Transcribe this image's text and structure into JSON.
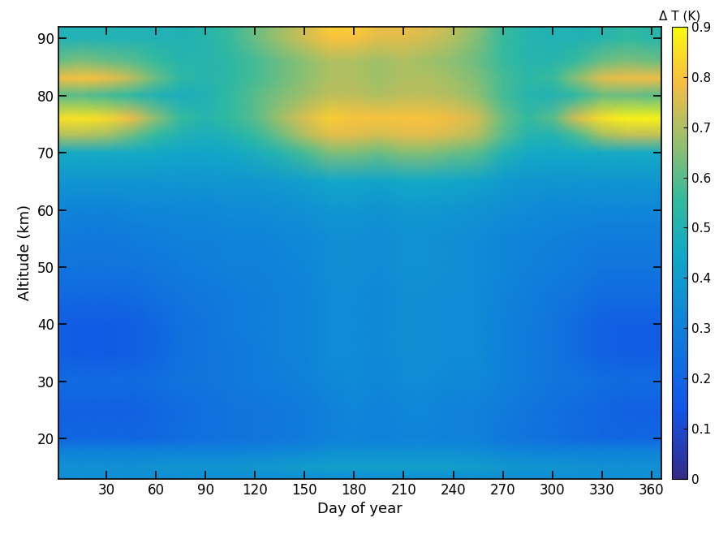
{
  "chart_data": {
    "type": "heatmap",
    "xlabel": "Day of year",
    "ylabel": "Altitude (km)",
    "colorbar_label": "Δ T (K)",
    "x": [
      1,
      15,
      30,
      45,
      60,
      75,
      90,
      105,
      120,
      135,
      150,
      165,
      180,
      195,
      210,
      225,
      240,
      255,
      270,
      285,
      300,
      315,
      330,
      345,
      366
    ],
    "y": [
      13,
      15,
      18,
      20,
      25,
      30,
      35,
      40,
      45,
      50,
      55,
      60,
      65,
      70,
      73,
      76,
      80,
      83,
      86,
      90,
      92
    ],
    "cells": [
      [
        0.35,
        0.35,
        0.35,
        0.35,
        0.35,
        0.35,
        0.35,
        0.35,
        0.35,
        0.35,
        0.35,
        0.35,
        0.35,
        0.35,
        0.35,
        0.35,
        0.35,
        0.35,
        0.35,
        0.35,
        0.35,
        0.35,
        0.35,
        0.35,
        0.35
      ],
      [
        0.36,
        0.36,
        0.36,
        0.36,
        0.37,
        0.38,
        0.38,
        0.38,
        0.39,
        0.4,
        0.41,
        0.42,
        0.42,
        0.42,
        0.42,
        0.42,
        0.42,
        0.41,
        0.39,
        0.38,
        0.38,
        0.37,
        0.36,
        0.36,
        0.36
      ],
      [
        0.3,
        0.3,
        0.3,
        0.3,
        0.3,
        0.3,
        0.3,
        0.3,
        0.31,
        0.32,
        0.33,
        0.35,
        0.35,
        0.35,
        0.35,
        0.35,
        0.35,
        0.34,
        0.32,
        0.31,
        0.3,
        0.3,
        0.3,
        0.3,
        0.3
      ],
      [
        0.2,
        0.2,
        0.2,
        0.2,
        0.21,
        0.23,
        0.24,
        0.25,
        0.26,
        0.27,
        0.28,
        0.3,
        0.31,
        0.3,
        0.31,
        0.31,
        0.3,
        0.3,
        0.27,
        0.25,
        0.24,
        0.22,
        0.21,
        0.2,
        0.2
      ],
      [
        0.18,
        0.18,
        0.18,
        0.18,
        0.2,
        0.22,
        0.24,
        0.25,
        0.26,
        0.27,
        0.28,
        0.3,
        0.32,
        0.3,
        0.32,
        0.32,
        0.3,
        0.3,
        0.28,
        0.26,
        0.24,
        0.22,
        0.2,
        0.18,
        0.18
      ],
      [
        0.22,
        0.22,
        0.22,
        0.22,
        0.23,
        0.25,
        0.26,
        0.27,
        0.28,
        0.29,
        0.3,
        0.33,
        0.34,
        0.32,
        0.34,
        0.34,
        0.33,
        0.33,
        0.3,
        0.28,
        0.26,
        0.25,
        0.23,
        0.22,
        0.22
      ],
      [
        0.17,
        0.16,
        0.16,
        0.17,
        0.2,
        0.24,
        0.26,
        0.27,
        0.28,
        0.3,
        0.31,
        0.34,
        0.34,
        0.33,
        0.35,
        0.35,
        0.34,
        0.34,
        0.3,
        0.28,
        0.26,
        0.22,
        0.18,
        0.17,
        0.17
      ],
      [
        0.17,
        0.16,
        0.16,
        0.17,
        0.2,
        0.24,
        0.26,
        0.28,
        0.29,
        0.3,
        0.31,
        0.34,
        0.34,
        0.33,
        0.35,
        0.35,
        0.34,
        0.34,
        0.3,
        0.28,
        0.26,
        0.22,
        0.18,
        0.17,
        0.17
      ],
      [
        0.22,
        0.21,
        0.21,
        0.22,
        0.24,
        0.26,
        0.27,
        0.28,
        0.29,
        0.3,
        0.31,
        0.34,
        0.34,
        0.33,
        0.35,
        0.35,
        0.34,
        0.34,
        0.31,
        0.29,
        0.27,
        0.25,
        0.22,
        0.22,
        0.22
      ],
      [
        0.26,
        0.25,
        0.25,
        0.26,
        0.27,
        0.28,
        0.29,
        0.3,
        0.3,
        0.31,
        0.32,
        0.35,
        0.35,
        0.34,
        0.36,
        0.36,
        0.35,
        0.34,
        0.32,
        0.3,
        0.29,
        0.28,
        0.26,
        0.26,
        0.26
      ],
      [
        0.28,
        0.27,
        0.27,
        0.28,
        0.29,
        0.3,
        0.3,
        0.31,
        0.31,
        0.32,
        0.33,
        0.35,
        0.35,
        0.34,
        0.36,
        0.36,
        0.35,
        0.34,
        0.32,
        0.31,
        0.3,
        0.29,
        0.28,
        0.28,
        0.28
      ],
      [
        0.32,
        0.31,
        0.31,
        0.32,
        0.32,
        0.33,
        0.33,
        0.34,
        0.34,
        0.35,
        0.36,
        0.38,
        0.38,
        0.37,
        0.39,
        0.39,
        0.38,
        0.37,
        0.35,
        0.34,
        0.33,
        0.33,
        0.32,
        0.32,
        0.32
      ],
      [
        0.38,
        0.38,
        0.38,
        0.38,
        0.38,
        0.38,
        0.38,
        0.38,
        0.39,
        0.4,
        0.42,
        0.44,
        0.44,
        0.43,
        0.45,
        0.45,
        0.44,
        0.43,
        0.4,
        0.38,
        0.38,
        0.38,
        0.38,
        0.38,
        0.38
      ],
      [
        0.46,
        0.46,
        0.46,
        0.46,
        0.45,
        0.44,
        0.44,
        0.45,
        0.48,
        0.52,
        0.58,
        0.64,
        0.64,
        0.62,
        0.65,
        0.65,
        0.62,
        0.6,
        0.5,
        0.46,
        0.45,
        0.45,
        0.46,
        0.46,
        0.46
      ],
      [
        0.7,
        0.7,
        0.68,
        0.62,
        0.55,
        0.5,
        0.48,
        0.5,
        0.55,
        0.62,
        0.7,
        0.76,
        0.76,
        0.74,
        0.76,
        0.76,
        0.74,
        0.7,
        0.6,
        0.52,
        0.5,
        0.58,
        0.68,
        0.72,
        0.72
      ],
      [
        0.85,
        0.86,
        0.84,
        0.78,
        0.66,
        0.56,
        0.52,
        0.55,
        0.6,
        0.68,
        0.75,
        0.82,
        0.8,
        0.8,
        0.8,
        0.8,
        0.78,
        0.74,
        0.62,
        0.55,
        0.6,
        0.75,
        0.85,
        0.88,
        0.88
      ],
      [
        0.6,
        0.6,
        0.58,
        0.55,
        0.5,
        0.48,
        0.5,
        0.55,
        0.6,
        0.64,
        0.68,
        0.72,
        0.72,
        0.7,
        0.72,
        0.72,
        0.7,
        0.66,
        0.58,
        0.52,
        0.5,
        0.55,
        0.62,
        0.62,
        0.6
      ],
      [
        0.78,
        0.8,
        0.78,
        0.72,
        0.62,
        0.54,
        0.52,
        0.54,
        0.58,
        0.62,
        0.66,
        0.7,
        0.7,
        0.68,
        0.7,
        0.7,
        0.68,
        0.64,
        0.58,
        0.54,
        0.56,
        0.66,
        0.76,
        0.78,
        0.78
      ],
      [
        0.62,
        0.64,
        0.62,
        0.6,
        0.56,
        0.52,
        0.52,
        0.54,
        0.58,
        0.62,
        0.66,
        0.7,
        0.7,
        0.68,
        0.7,
        0.68,
        0.66,
        0.62,
        0.56,
        0.52,
        0.52,
        0.56,
        0.62,
        0.64,
        0.62
      ],
      [
        0.5,
        0.5,
        0.5,
        0.5,
        0.5,
        0.5,
        0.52,
        0.56,
        0.62,
        0.68,
        0.74,
        0.8,
        0.8,
        0.76,
        0.76,
        0.74,
        0.7,
        0.64,
        0.56,
        0.52,
        0.5,
        0.5,
        0.52,
        0.55,
        0.52
      ],
      [
        0.5,
        0.5,
        0.5,
        0.5,
        0.5,
        0.5,
        0.52,
        0.56,
        0.62,
        0.68,
        0.74,
        0.82,
        0.82,
        0.78,
        0.78,
        0.76,
        0.72,
        0.66,
        0.56,
        0.52,
        0.5,
        0.5,
        0.52,
        0.55,
        0.52
      ]
    ],
    "xlim": [
      1,
      366
    ],
    "ylim": [
      13,
      92
    ],
    "xticks": [
      30,
      60,
      90,
      120,
      150,
      180,
      210,
      240,
      270,
      300,
      330,
      360
    ],
    "yticks": [
      20,
      30,
      40,
      50,
      60,
      70,
      80,
      90
    ],
    "color_range": [
      0,
      0.9
    ],
    "color_ticks": [
      0,
      0.1,
      0.2,
      0.3,
      0.4,
      0.5,
      0.6,
      0.7,
      0.8,
      0.9
    ]
  }
}
